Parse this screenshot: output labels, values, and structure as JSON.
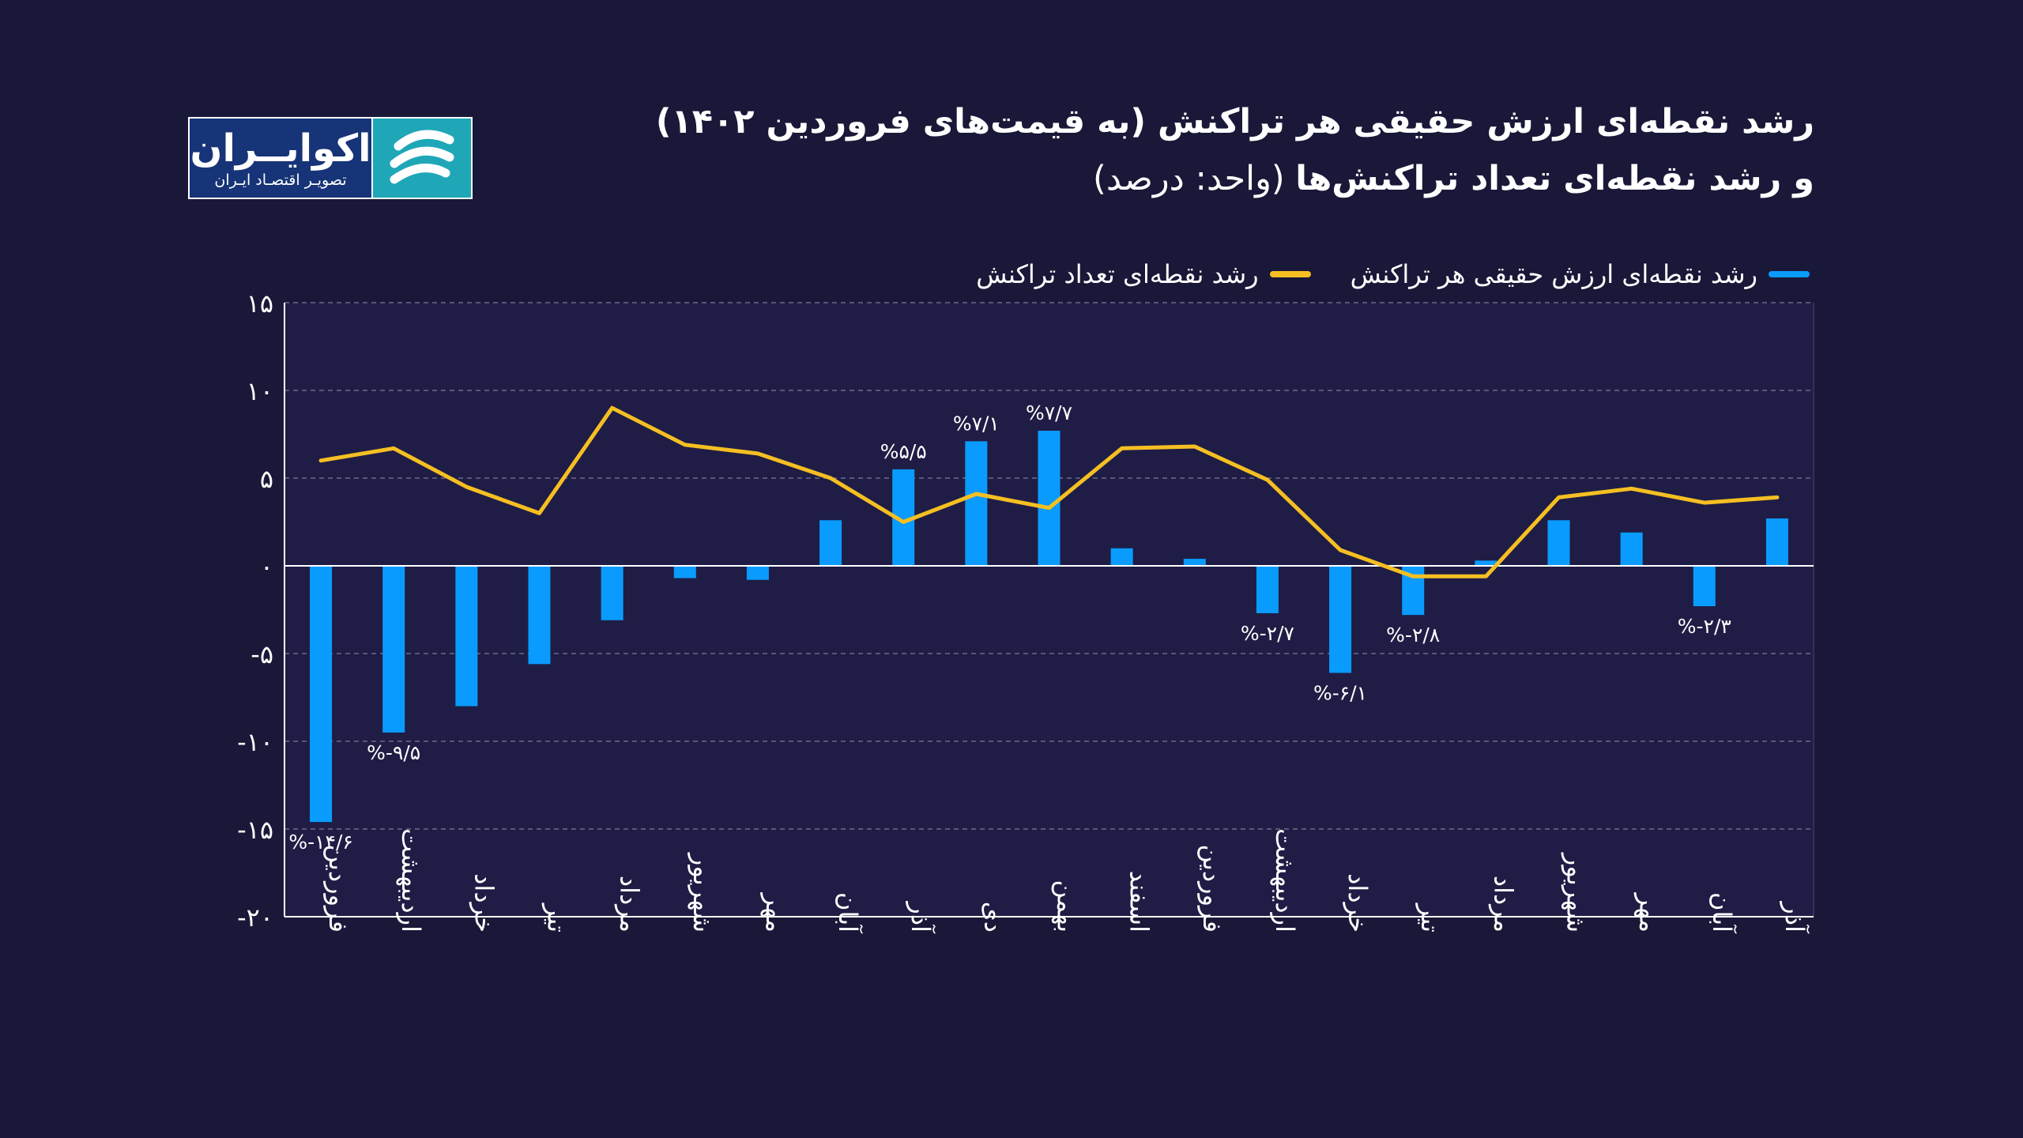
{
  "header": {
    "title_line1": "رشد نقطه‌ای ارزش حقیقی هر تراکنش (به قیمت‌های فروردین ۱۴۰۲)",
    "title_line2_bold": "و رشد نقطه‌ای تعداد تراکنش‌ها",
    "title_line2_unit": "(واحد: درصد)"
  },
  "logo": {
    "name": "اکوایــران",
    "subtitle": "تصویـر اقتصـاد ایـران",
    "mark_icon": "ecoiran-swirl-icon"
  },
  "legend": {
    "items": [
      {
        "label": "رشد نقطه‌ای ارزش حقیقی هر تراکنش",
        "color": "#0a9bff"
      },
      {
        "label": "رشد نقطه‌ای تعداد تراکنش",
        "color": "#f5bf22"
      }
    ]
  },
  "chart_data": {
    "type": "bar",
    "categories": [
      "فروردین",
      "اردیبهشت",
      "خرداد",
      "تیر",
      "مرداد",
      "شهریور",
      "مهر",
      "آبان",
      "آذر",
      "دی",
      "بهمن",
      "اسفند",
      "فروردین",
      "اردیبهشت",
      "خرداد",
      "تیر",
      "مرداد",
      "شهریور",
      "مهر",
      "آبان",
      "آذر"
    ],
    "series": [
      {
        "name": "رشد نقطه‌ای ارزش حقیقی هر تراکنش",
        "type": "bar",
        "color": "#0a9bff",
        "values": [
          -14.6,
          -9.5,
          -8.0,
          -5.6,
          -3.1,
          -0.7,
          -0.8,
          2.6,
          5.5,
          7.1,
          7.7,
          1.0,
          0.4,
          -2.7,
          -6.1,
          -2.8,
          0.3,
          2.6,
          1.9,
          -2.3,
          2.7
        ]
      },
      {
        "name": "رشد نقطه‌ای تعداد تراکنش",
        "type": "line",
        "color": "#f5bf22",
        "values": [
          6.0,
          6.7,
          4.5,
          3.0,
          9.0,
          6.9,
          6.4,
          5.0,
          2.5,
          4.1,
          3.3,
          6.7,
          6.8,
          4.9,
          0.9,
          -0.6,
          -0.6,
          3.9,
          4.4,
          3.6,
          3.9
        ]
      }
    ],
    "data_labels": [
      {
        "index": 0,
        "text": "%-۱۴/۶"
      },
      {
        "index": 1,
        "text": "%-۹/۵"
      },
      {
        "index": 8,
        "text": "%۵/۵"
      },
      {
        "index": 9,
        "text": "%۷/۱"
      },
      {
        "index": 10,
        "text": "%۷/۷"
      },
      {
        "index": 13,
        "text": "%-۲/۷"
      },
      {
        "index": 14,
        "text": "%-۶/۱"
      },
      {
        "index": 15,
        "text": "%-۲/۸"
      },
      {
        "index": 19,
        "text": "%-۲/۳"
      }
    ],
    "y_ticks": [
      15,
      10,
      5,
      0,
      -5,
      -10,
      -15,
      -20
    ],
    "y_tick_labels": [
      "۱۵",
      "۱۰",
      "۵",
      "۰",
      "-۵",
      "-۱۰",
      "-۱۵",
      "-۲۰"
    ],
    "ylim": [
      -20,
      15
    ],
    "grid": true,
    "colors": {
      "background": "#1a1838",
      "plot_background": "#1f1d45",
      "grid": "#6b6a8c",
      "axis": "#ffffff"
    }
  }
}
